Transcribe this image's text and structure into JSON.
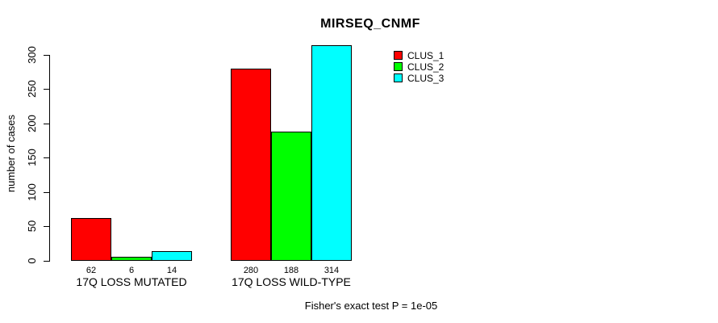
{
  "chart_data": {
    "type": "bar",
    "title": "MIRSEQ_CNMF",
    "xlabel": "",
    "ylabel": "number of cases",
    "ylim": [
      0,
      300
    ],
    "yticks": [
      0,
      50,
      100,
      150,
      200,
      250,
      300
    ],
    "grid": false,
    "legend_position": "top-right",
    "categories": [
      "17Q LOSS MUTATED",
      "17Q LOSS WILD-TYPE"
    ],
    "groups": [
      {
        "label": "17Q LOSS MUTATED",
        "values": [
          62,
          6,
          14
        ]
      },
      {
        "label": "17Q LOSS WILD-TYPE",
        "values": [
          280,
          188,
          314
        ]
      }
    ],
    "series": [
      {
        "name": "CLUS_1",
        "color": "#ff0000",
        "values": [
          62,
          280
        ]
      },
      {
        "name": "CLUS_2",
        "color": "#00ff00",
        "values": [
          6,
          188
        ]
      },
      {
        "name": "CLUS_3",
        "color": "#00ffff",
        "values": [
          14,
          314
        ]
      }
    ],
    "bar_value_labels": [
      "62",
      "6",
      "14",
      "280",
      "188",
      "314"
    ],
    "annotation": "Fisher's exact test P = 1e-05"
  }
}
